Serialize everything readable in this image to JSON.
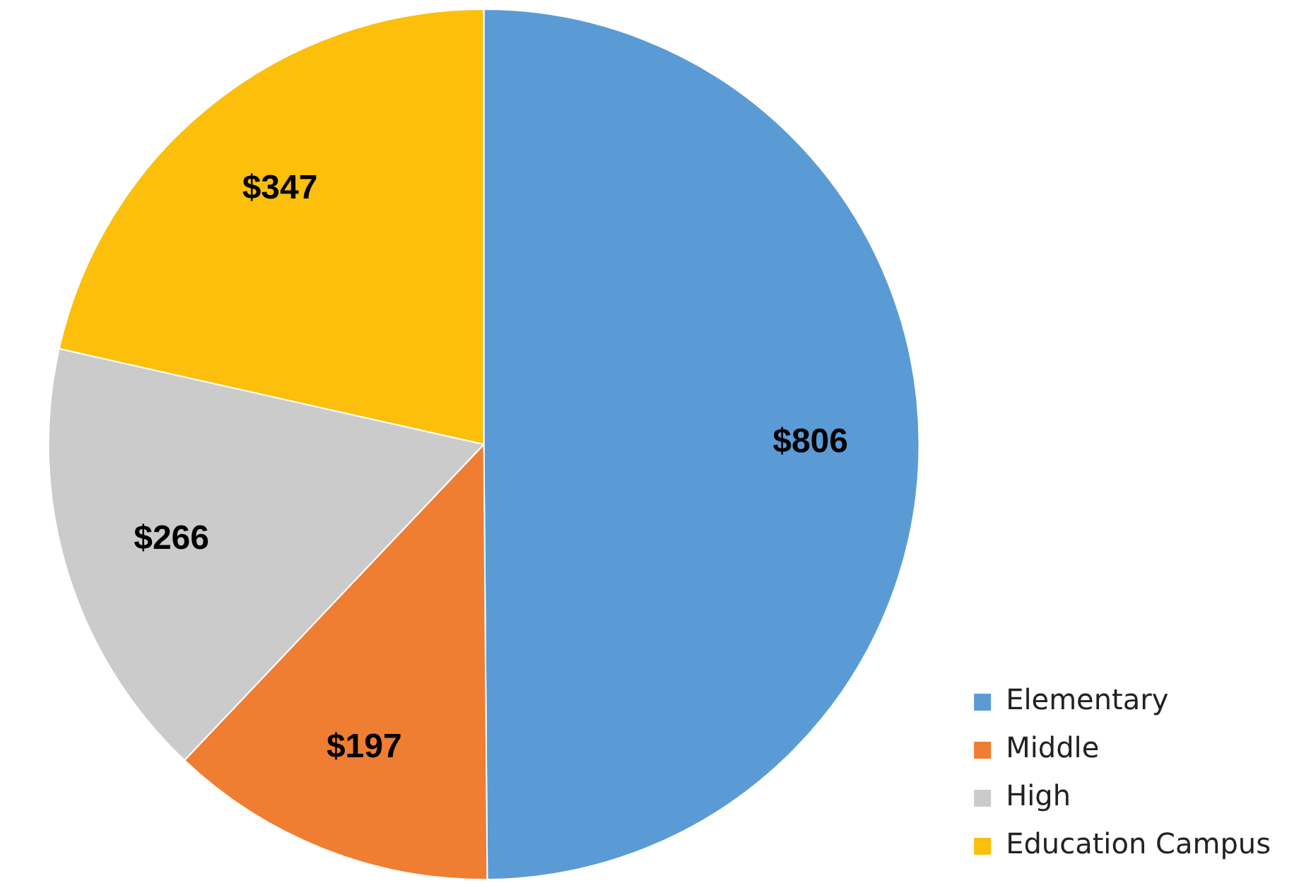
{
  "chart_data": {
    "type": "pie",
    "categories": [
      "Elementary",
      "Middle",
      "High",
      "Education Campus"
    ],
    "values": [
      806,
      197,
      266,
      347
    ],
    "value_labels": [
      "$806",
      "$197",
      "$266",
      "$347"
    ],
    "colors": [
      "#5b9bd5",
      "#ef7d32",
      "#cbcbcb",
      "#fbbf0c"
    ],
    "legend": "bottom right"
  }
}
